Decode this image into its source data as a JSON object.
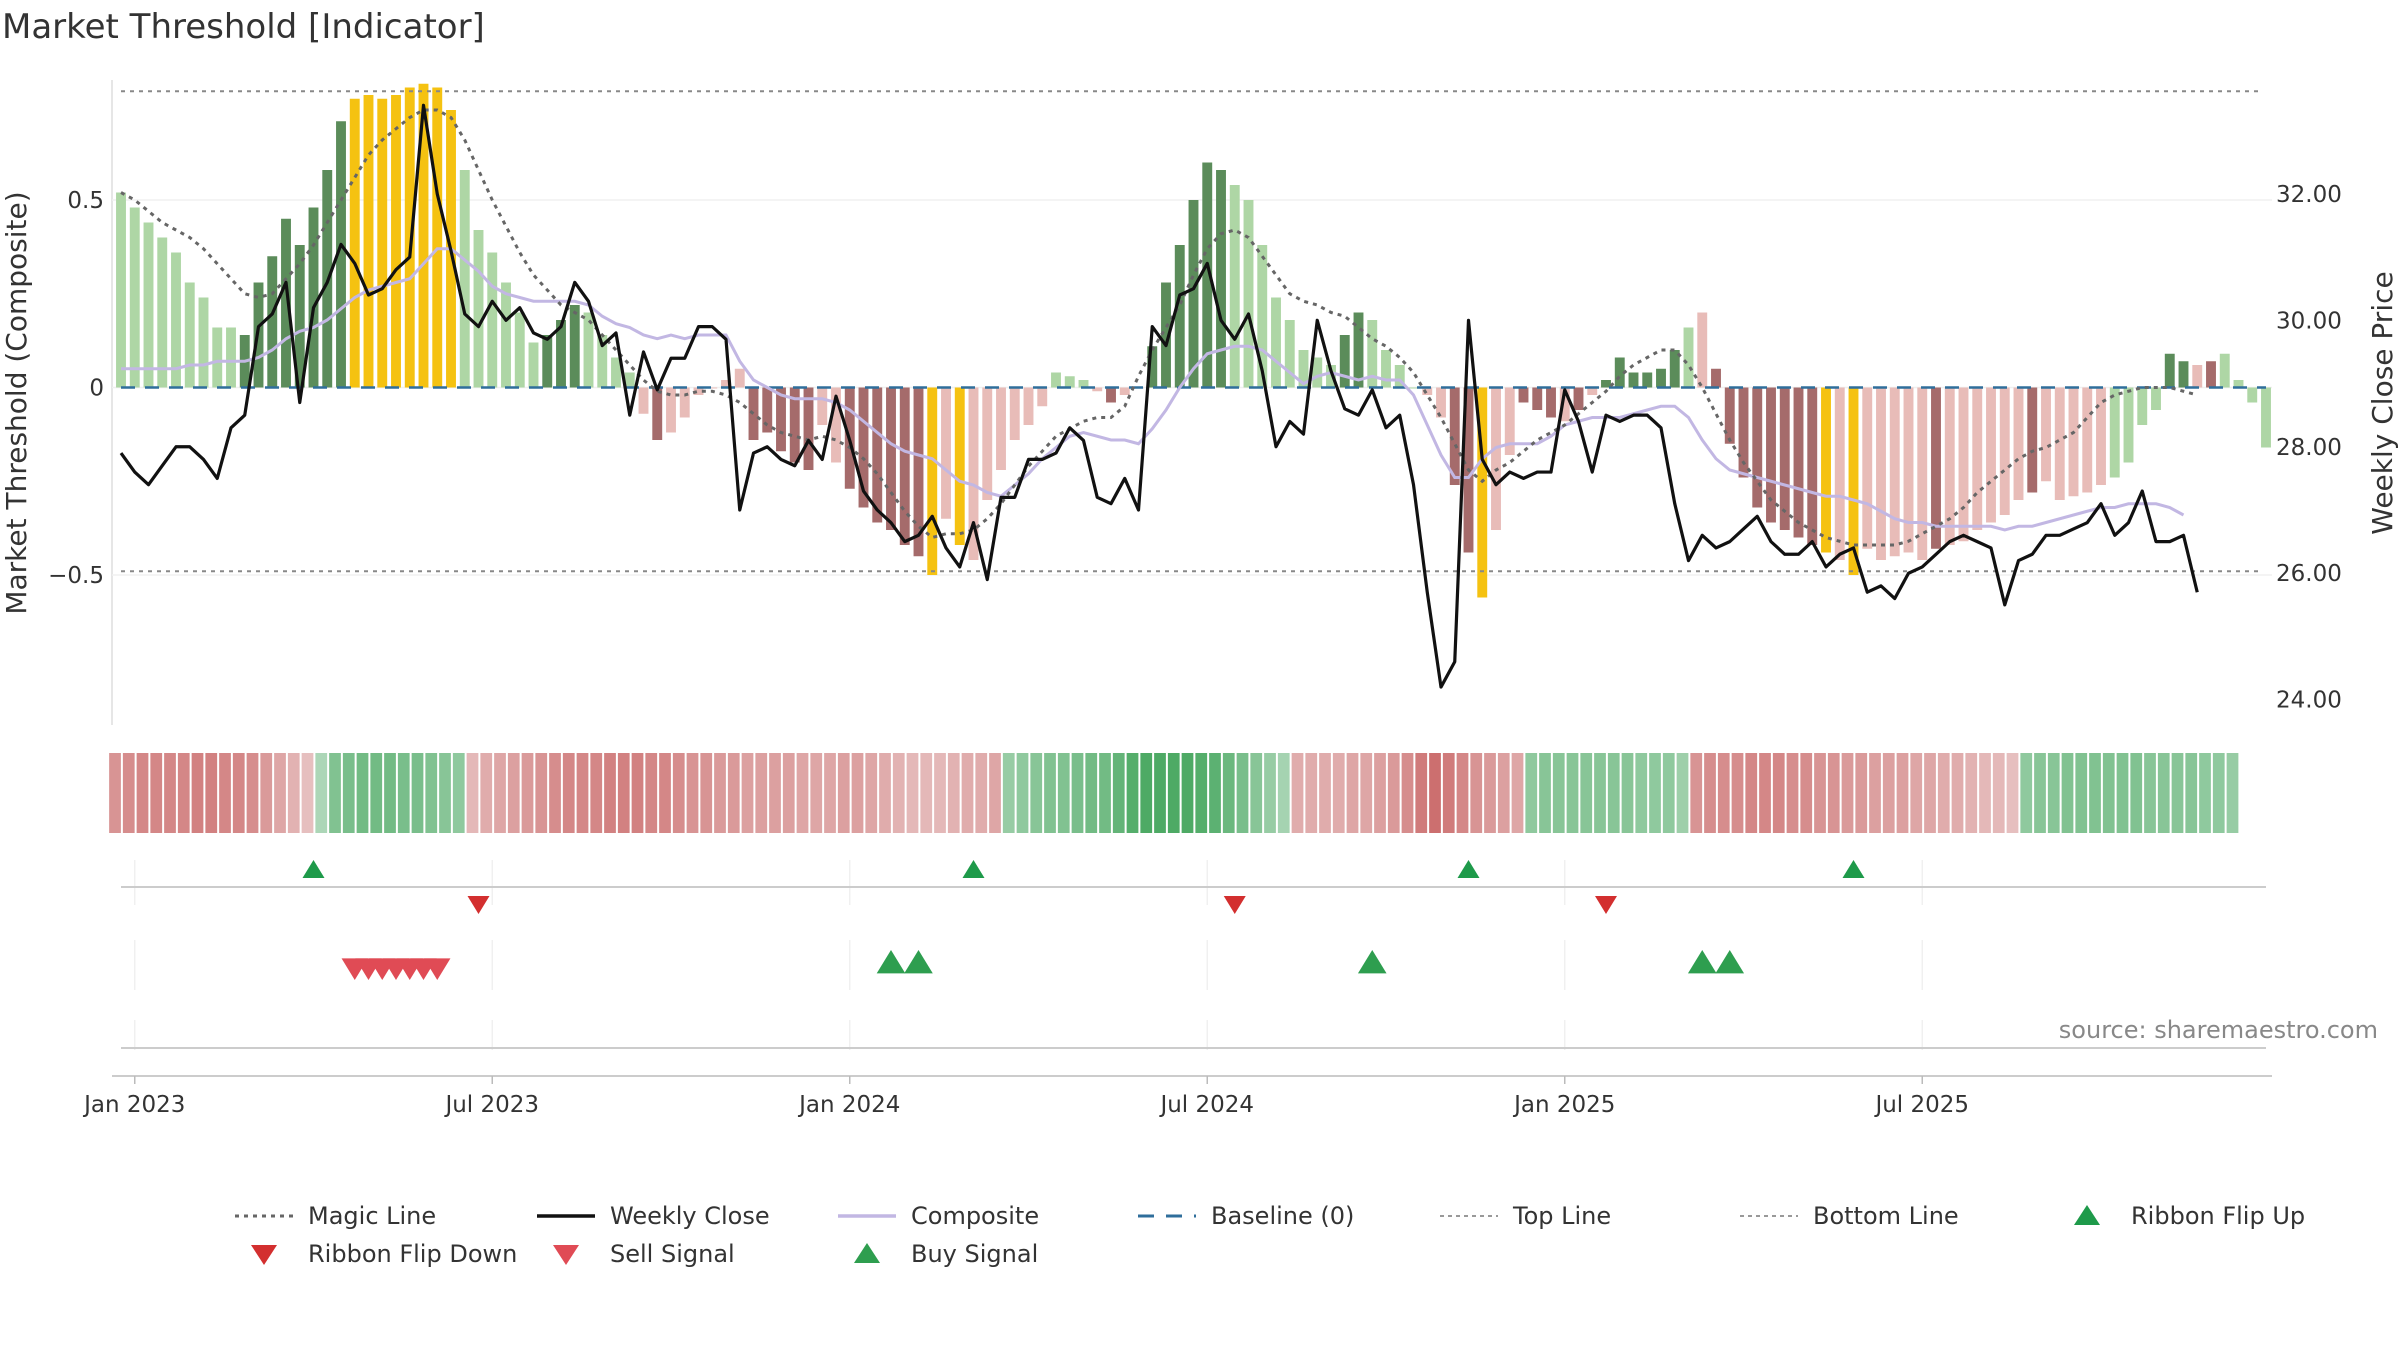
{
  "chart_data": {
    "type": "bar",
    "title": "Market Threshold [Indicator]",
    "ylabel": "Market Threshold (Composite)",
    "y2label": "Weekly Close Price",
    "ylim": [
      -0.9,
      0.82
    ],
    "y2lim": [
      23.6,
      33.8
    ],
    "yticks": [
      {
        "value": 0.5,
        "label": "0.5"
      },
      {
        "value": 0,
        "label": "0"
      },
      {
        "value": -0.5,
        "label": "−0.5"
      }
    ],
    "y2ticks": [
      {
        "value": 32,
        "label": "32.00"
      },
      {
        "value": 30,
        "label": "30.00"
      },
      {
        "value": 28,
        "label": "28.00"
      },
      {
        "value": 26,
        "label": "26.00"
      },
      {
        "value": 24,
        "label": "24.00"
      }
    ],
    "xticks": [
      {
        "index": 1,
        "label": "Jan 2023"
      },
      {
        "index": 27,
        "label": "Jul 2023"
      },
      {
        "index": 53,
        "label": "Jan 2024"
      },
      {
        "index": 79,
        "label": "Jul 2024"
      },
      {
        "index": 105,
        "label": "Jan 2025"
      },
      {
        "index": 131,
        "label": "Jul 2025"
      }
    ],
    "top_line": 0.79,
    "bottom_line": -0.49,
    "source": "source: sharemaestro.com",
    "colors": {
      "strong_up": "#5b8c5a",
      "weak_up": "#aed6a5",
      "strong_down": "#a56b6b",
      "weak_down": "#e8bcb8",
      "extreme": "#f5c211",
      "weekly_close": "#111111",
      "composite": "#c2b7e3",
      "magic_line": "#666666",
      "baseline": "#2f6e9b",
      "signal_green": "#1e9a4a",
      "signal_red": "#d32f2f"
    },
    "composite_bars": [
      0.52,
      0.48,
      0.44,
      0.4,
      0.36,
      0.28,
      0.24,
      0.16,
      0.16,
      0.14,
      0.28,
      0.35,
      0.45,
      0.38,
      0.48,
      0.58,
      0.71,
      0.77,
      0.78,
      0.77,
      0.78,
      0.8,
      0.81,
      0.8,
      0.74,
      0.58,
      0.42,
      0.36,
      0.28,
      0.2,
      0.12,
      0.14,
      0.18,
      0.22,
      0.2,
      0.14,
      0.08,
      0.04,
      -0.07,
      -0.14,
      -0.12,
      -0.08,
      -0.02,
      0.0,
      0.02,
      0.05,
      -0.14,
      -0.12,
      -0.17,
      -0.2,
      -0.22,
      -0.1,
      -0.2,
      -0.27,
      -0.32,
      -0.36,
      -0.38,
      -0.42,
      -0.45,
      -0.5,
      -0.35,
      -0.42,
      -0.46,
      -0.3,
      -0.22,
      -0.14,
      -0.1,
      -0.05,
      0.04,
      0.03,
      0.02,
      -0.01,
      -0.04,
      -0.02,
      0.0,
      0.11,
      0.28,
      0.38,
      0.5,
      0.6,
      0.58,
      0.54,
      0.5,
      0.38,
      0.24,
      0.18,
      0.1,
      0.08,
      0.06,
      0.14,
      0.2,
      0.18,
      0.1,
      0.06,
      0.0,
      -0.02,
      -0.08,
      -0.26,
      -0.44,
      -0.56,
      -0.38,
      -0.18,
      -0.04,
      -0.06,
      -0.08,
      -0.09,
      -0.06,
      -0.02,
      0.02,
      0.08,
      0.04,
      0.04,
      0.05,
      0.1,
      0.16,
      0.2,
      0.05,
      -0.15,
      -0.24,
      -0.32,
      -0.36,
      -0.38,
      -0.4,
      -0.42,
      -0.44,
      -0.46,
      -0.5,
      -0.43,
      -0.46,
      -0.45,
      -0.44,
      -0.46,
      -0.43,
      -0.42,
      -0.41,
      -0.38,
      -0.36,
      -0.34,
      -0.3,
      -0.28,
      -0.25,
      -0.3,
      -0.29,
      -0.28,
      -0.26,
      -0.24,
      -0.2,
      -0.1,
      -0.06,
      0.09,
      0.07,
      0.06,
      0.07,
      0.09,
      0.02,
      -0.04,
      -0.16
    ],
    "bar_class": [
      "wu",
      "wu",
      "wu",
      "wu",
      "wu",
      "wu",
      "wu",
      "wu",
      "wu",
      "su",
      "su",
      "su",
      "su",
      "su",
      "su",
      "su",
      "su",
      "ex",
      "ex",
      "ex",
      "ex",
      "ex",
      "ex",
      "ex",
      "ex",
      "wu",
      "wu",
      "wu",
      "wu",
      "wu",
      "wu",
      "su",
      "su",
      "su",
      "wu",
      "wu",
      "wu",
      "wu",
      "wd",
      "sd",
      "wd",
      "wd",
      "wd",
      "wd",
      "wd",
      "wd",
      "sd",
      "sd",
      "sd",
      "sd",
      "sd",
      "wd",
      "wd",
      "sd",
      "sd",
      "sd",
      "sd",
      "sd",
      "sd",
      "ex",
      "wd",
      "ex",
      "wd",
      "wd",
      "wd",
      "wd",
      "wd",
      "wd",
      "wu",
      "wu",
      "wu",
      "wd",
      "sd",
      "wd",
      "wd",
      "su",
      "su",
      "su",
      "su",
      "su",
      "su",
      "wu",
      "wu",
      "wu",
      "wu",
      "wu",
      "wu",
      "wu",
      "wu",
      "su",
      "su",
      "wu",
      "wu",
      "wu",
      "wu",
      "wd",
      "wd",
      "sd",
      "sd",
      "ex",
      "wd",
      "wd",
      "sd",
      "sd",
      "sd",
      "wd",
      "sd",
      "wd",
      "su",
      "su",
      "su",
      "su",
      "su",
      "su",
      "wu",
      "wd",
      "sd",
      "sd",
      "sd",
      "sd",
      "sd",
      "sd",
      "sd",
      "sd",
      "ex",
      "wd",
      "ex",
      "wd",
      "wd",
      "wd",
      "wd",
      "wd",
      "sd",
      "wd",
      "wd",
      "wd",
      "wd",
      "wd",
      "wd",
      "sd",
      "wd",
      "wd",
      "wd",
      "wd",
      "wd",
      "wu",
      "wu",
      "wu",
      "wu",
      "su",
      "su",
      "wd",
      "sd"
    ],
    "weekly_close": [
      27.9,
      27.6,
      27.4,
      27.7,
      28.0,
      28.0,
      27.8,
      27.5,
      28.3,
      28.5,
      29.9,
      30.1,
      30.6,
      28.7,
      30.2,
      30.6,
      31.2,
      30.9,
      30.4,
      30.5,
      30.8,
      31.0,
      33.4,
      32.0,
      31.1,
      30.1,
      29.9,
      30.3,
      30.0,
      30.2,
      29.8,
      29.7,
      29.9,
      30.6,
      30.3,
      29.6,
      29.8,
      28.5,
      29.5,
      28.9,
      29.4,
      29.4,
      29.9,
      29.9,
      29.7,
      27.0,
      27.9,
      28.0,
      27.8,
      27.7,
      28.1,
      27.8,
      28.8,
      28.1,
      27.3,
      27.0,
      26.8,
      26.5,
      26.6,
      26.9,
      26.4,
      26.1,
      26.8,
      25.9,
      27.2,
      27.2,
      27.8,
      27.8,
      27.9,
      28.3,
      28.1,
      27.2,
      27.1,
      27.5,
      27.0,
      29.9,
      29.6,
      30.4,
      30.5,
      30.9,
      30.0,
      29.7,
      30.1,
      29.2,
      28.0,
      28.4,
      28.2,
      30.0,
      29.2,
      28.6,
      28.5,
      28.9,
      28.3,
      28.5,
      27.4,
      25.7,
      24.2,
      24.6,
      30.0,
      27.8,
      27.4,
      27.6,
      27.5,
      27.6,
      27.6,
      28.9,
      28.4,
      27.6,
      28.5,
      28.4,
      28.5,
      28.5,
      28.3,
      27.1,
      26.2,
      26.6,
      26.4,
      26.5,
      26.7,
      26.9,
      26.5,
      26.3,
      26.3,
      26.5,
      26.1,
      26.3,
      26.4,
      25.7,
      25.8,
      25.6,
      26.0,
      26.1,
      26.3,
      26.5,
      26.6,
      26.5,
      26.4,
      25.5,
      26.2,
      26.3,
      26.6,
      26.6,
      26.7,
      26.8,
      27.1,
      26.6,
      26.8,
      27.3,
      26.5,
      26.5,
      26.6,
      25.7
    ],
    "composite_line": [
      0.05,
      0.05,
      0.05,
      0.05,
      0.05,
      0.06,
      0.06,
      0.07,
      0.07,
      0.07,
      0.08,
      0.1,
      0.13,
      0.15,
      0.16,
      0.18,
      0.21,
      0.24,
      0.26,
      0.27,
      0.28,
      0.29,
      0.33,
      0.37,
      0.37,
      0.34,
      0.31,
      0.27,
      0.25,
      0.24,
      0.23,
      0.23,
      0.23,
      0.23,
      0.22,
      0.19,
      0.17,
      0.16,
      0.14,
      0.13,
      0.14,
      0.13,
      0.14,
      0.14,
      0.14,
      0.07,
      0.02,
      0.0,
      -0.02,
      -0.03,
      -0.03,
      -0.03,
      -0.04,
      -0.06,
      -0.09,
      -0.12,
      -0.15,
      -0.17,
      -0.18,
      -0.19,
      -0.22,
      -0.25,
      -0.26,
      -0.28,
      -0.29,
      -0.26,
      -0.23,
      -0.19,
      -0.16,
      -0.13,
      -0.12,
      -0.13,
      -0.14,
      -0.14,
      -0.15,
      -0.11,
      -0.06,
      0.0,
      0.05,
      0.09,
      0.1,
      0.11,
      0.11,
      0.1,
      0.07,
      0.04,
      0.01,
      0.03,
      0.04,
      0.03,
      0.02,
      0.03,
      0.02,
      0.02,
      -0.02,
      -0.1,
      -0.18,
      -0.24,
      -0.24,
      -0.19,
      -0.16,
      -0.15,
      -0.15,
      -0.15,
      -0.13,
      -0.1,
      -0.09,
      -0.08,
      -0.08,
      -0.08,
      -0.07,
      -0.06,
      -0.05,
      -0.05,
      -0.08,
      -0.14,
      -0.19,
      -0.22,
      -0.23,
      -0.24,
      -0.25,
      -0.26,
      -0.27,
      -0.28,
      -0.29,
      -0.29,
      -0.3,
      -0.31,
      -0.33,
      -0.35,
      -0.36,
      -0.36,
      -0.37,
      -0.37,
      -0.37,
      -0.37,
      -0.37,
      -0.38,
      -0.37,
      -0.37,
      -0.36,
      -0.35,
      -0.34,
      -0.33,
      -0.32,
      -0.32,
      -0.31,
      -0.31,
      -0.31,
      -0.32,
      -0.34
    ],
    "magic_line": [
      0.52,
      0.5,
      0.47,
      0.44,
      0.42,
      0.4,
      0.37,
      0.33,
      0.29,
      0.25,
      0.24,
      0.25,
      0.29,
      0.33,
      0.38,
      0.44,
      0.5,
      0.56,
      0.62,
      0.66,
      0.69,
      0.72,
      0.74,
      0.74,
      0.72,
      0.66,
      0.58,
      0.5,
      0.43,
      0.36,
      0.3,
      0.26,
      0.22,
      0.2,
      0.18,
      0.14,
      0.1,
      0.06,
      0.02,
      -0.01,
      -0.02,
      -0.02,
      -0.01,
      -0.01,
      -0.02,
      -0.04,
      -0.07,
      -0.1,
      -0.12,
      -0.13,
      -0.14,
      -0.13,
      -0.14,
      -0.16,
      -0.19,
      -0.23,
      -0.28,
      -0.33,
      -0.37,
      -0.4,
      -0.39,
      -0.39,
      -0.38,
      -0.35,
      -0.31,
      -0.26,
      -0.21,
      -0.17,
      -0.13,
      -0.11,
      -0.09,
      -0.08,
      -0.08,
      -0.05,
      0.03,
      0.1,
      0.16,
      0.22,
      0.3,
      0.37,
      0.41,
      0.42,
      0.4,
      0.35,
      0.3,
      0.25,
      0.23,
      0.22,
      0.2,
      0.19,
      0.16,
      0.13,
      0.11,
      0.08,
      0.04,
      -0.02,
      -0.08,
      -0.15,
      -0.22,
      -0.25,
      -0.22,
      -0.2,
      -0.17,
      -0.14,
      -0.12,
      -0.1,
      -0.07,
      -0.04,
      -0.01,
      0.03,
      0.06,
      0.08,
      0.1,
      0.1,
      0.06,
      0.0,
      -0.07,
      -0.14,
      -0.2,
      -0.25,
      -0.3,
      -0.33,
      -0.36,
      -0.38,
      -0.4,
      -0.41,
      -0.42,
      -0.42,
      -0.42,
      -0.42,
      -0.41,
      -0.39,
      -0.37,
      -0.35,
      -0.32,
      -0.28,
      -0.25,
      -0.22,
      -0.19,
      -0.17,
      -0.16,
      -0.14,
      -0.12,
      -0.08,
      -0.04,
      -0.02,
      -0.01,
      0.0,
      0.0,
      0.0,
      -0.01,
      -0.02
    ],
    "ribbon": [
      -0.5,
      -0.55,
      -0.6,
      -0.6,
      -0.6,
      -0.6,
      -0.65,
      -0.65,
      -0.6,
      -0.6,
      -0.55,
      -0.45,
      -0.35,
      -0.25,
      -0.15,
      0.2,
      0.5,
      0.55,
      0.6,
      0.6,
      0.6,
      0.55,
      0.55,
      0.5,
      0.45,
      0.4,
      -0.2,
      -0.3,
      -0.35,
      -0.4,
      -0.45,
      -0.5,
      -0.55,
      -0.6,
      -0.6,
      -0.6,
      -0.65,
      -0.65,
      -0.65,
      -0.6,
      -0.6,
      -0.55,
      -0.5,
      -0.5,
      -0.45,
      -0.45,
      -0.4,
      -0.4,
      -0.4,
      -0.4,
      -0.35,
      -0.35,
      -0.35,
      -0.4,
      -0.4,
      -0.35,
      -0.3,
      -0.25,
      -0.2,
      -0.2,
      -0.2,
      -0.25,
      -0.3,
      -0.3,
      -0.35,
      0.35,
      0.4,
      0.45,
      0.5,
      0.5,
      0.55,
      0.6,
      0.6,
      0.7,
      0.8,
      0.85,
      0.85,
      0.85,
      0.85,
      0.8,
      0.75,
      0.65,
      0.55,
      0.45,
      0.35,
      0.25,
      -0.3,
      -0.3,
      -0.3,
      -0.3,
      -0.35,
      -0.35,
      -0.4,
      -0.45,
      -0.55,
      -0.7,
      -0.8,
      -0.7,
      -0.6,
      -0.5,
      -0.45,
      -0.4,
      -0.35,
      0.4,
      0.45,
      0.45,
      0.45,
      0.45,
      0.45,
      0.45,
      0.45,
      0.4,
      0.4,
      0.4,
      0.3,
      -0.5,
      -0.55,
      -0.55,
      -0.55,
      -0.6,
      -0.6,
      -0.6,
      -0.55,
      -0.55,
      -0.5,
      -0.5,
      -0.45,
      -0.45,
      -0.4,
      -0.4,
      -0.4,
      -0.35,
      -0.35,
      -0.3,
      -0.3,
      -0.25,
      -0.2,
      -0.2,
      -0.15,
      0.4,
      0.45,
      0.45,
      0.5,
      0.5,
      0.5,
      0.5,
      0.5,
      0.5,
      0.45,
      0.45,
      0.45,
      0.45,
      0.4,
      0.4,
      0.35
    ],
    "ribbon_flip_up": [
      14,
      62,
      98,
      126
    ],
    "ribbon_flip_down": [
      26,
      81,
      108
    ],
    "sell_signals": [
      17,
      18,
      19,
      20,
      21,
      22,
      23
    ],
    "buy_signals": [
      56,
      58,
      91,
      115,
      117
    ],
    "legend": [
      {
        "label": "Magic Line",
        "kind": "dotted",
        "color": "#666666"
      },
      {
        "label": "Weekly Close",
        "kind": "solid",
        "color": "#111111"
      },
      {
        "label": "Composite",
        "kind": "solid",
        "color": "#c2b7e3"
      },
      {
        "label": "Baseline (0)",
        "kind": "dashed",
        "color": "#2f6e9b"
      },
      {
        "label": "Top Line",
        "kind": "thin-dotted",
        "color": "#999999"
      },
      {
        "label": "Bottom Line",
        "kind": "thin-dotted",
        "color": "#999999"
      },
      {
        "label": "Ribbon Flip Up",
        "kind": "tri-up",
        "color": "#1e9a4a"
      },
      {
        "label": "Ribbon Flip Down",
        "kind": "tri-down",
        "color": "#d32f2f"
      },
      {
        "label": "Sell Signal",
        "kind": "tri-down",
        "color": "#e04b55"
      },
      {
        "label": "Buy Signal",
        "kind": "tri-up",
        "color": "#2e9e4f"
      }
    ]
  }
}
